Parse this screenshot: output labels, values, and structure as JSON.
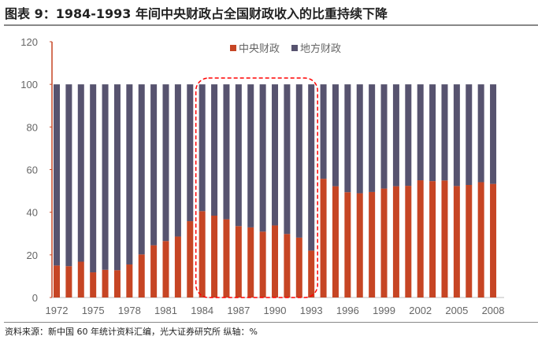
{
  "title": "图表 9：1984-1993 年间中央财政占全国财政收入的比重持续下降",
  "source": "资料来源：新中国 60 年统计资料汇编，光大证券研究所 纵轴：%",
  "chart_data": {
    "type": "bar",
    "stacked": true,
    "x": [
      1972,
      1973,
      1974,
      1975,
      1976,
      1977,
      1978,
      1979,
      1980,
      1981,
      1982,
      1983,
      1984,
      1985,
      1986,
      1987,
      1988,
      1989,
      1990,
      1991,
      1992,
      1993,
      1994,
      1995,
      1996,
      1997,
      1998,
      1999,
      2000,
      2001,
      2002,
      2003,
      2004,
      2005,
      2006,
      2007,
      2008
    ],
    "tick_labels": [
      "1972",
      "1975",
      "1978",
      "1981",
      "1984",
      "1987",
      "1990",
      "1993",
      "1996",
      "1999",
      "2002",
      "2005",
      "2008"
    ],
    "y_ticks": [
      "0",
      "20",
      "40",
      "60",
      "80",
      "100",
      "120"
    ],
    "ylim": [
      0,
      120
    ],
    "series": [
      {
        "name": "中央财政",
        "color": "#C64524",
        "values": [
          15.0,
          14.7,
          16.8,
          11.8,
          13.0,
          12.8,
          15.5,
          20.2,
          24.5,
          26.5,
          28.6,
          35.8,
          40.5,
          38.4,
          36.7,
          33.5,
          32.9,
          30.9,
          33.8,
          29.8,
          28.1,
          22.0,
          55.7,
          52.2,
          49.4,
          48.9,
          49.5,
          51.1,
          52.2,
          52.4,
          55.0,
          54.6,
          54.9,
          52.3,
          52.8,
          54.1,
          53.3
        ]
      },
      {
        "name": "地方财政",
        "color": "#57536F",
        "values": [
          85.0,
          85.3,
          83.2,
          88.2,
          87.0,
          87.2,
          84.5,
          79.8,
          75.5,
          73.5,
          71.4,
          64.2,
          59.5,
          61.6,
          63.3,
          66.5,
          67.1,
          69.1,
          66.2,
          70.2,
          71.9,
          78.0,
          44.3,
          47.8,
          50.6,
          51.1,
          50.5,
          48.9,
          47.8,
          47.6,
          45.0,
          45.4,
          45.1,
          47.7,
          47.2,
          45.9,
          46.7
        ]
      }
    ],
    "legend": "top-center",
    "grid": false,
    "annotation": {
      "type": "dashed-rounded-rect",
      "color": "#FF0000",
      "x_range": [
        1984,
        1993
      ]
    }
  }
}
